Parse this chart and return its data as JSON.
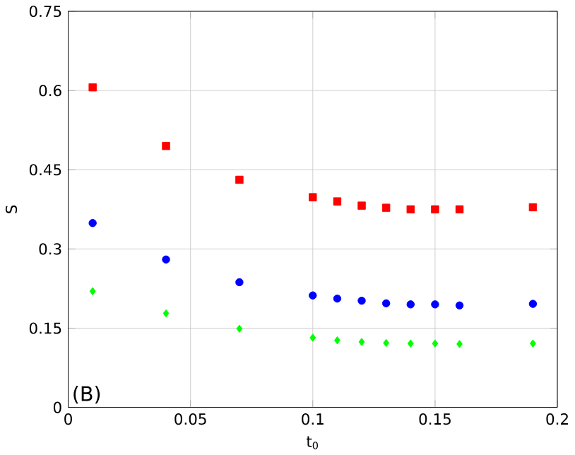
{
  "chart_data": {
    "type": "scatter",
    "xlabel": "t$_{0}$",
    "ylabel": "S",
    "x": [
      0.01,
      0.04,
      0.07,
      0.1,
      0.11,
      0.12,
      0.13,
      0.14,
      0.15,
      0.16,
      0.19
    ],
    "series": [
      {
        "color": "#ff0000",
        "marker": "square",
        "values": [
          0.606,
          0.495,
          0.431,
          0.398,
          0.39,
          0.382,
          0.378,
          0.375,
          0.375,
          0.375,
          0.379
        ]
      },
      {
        "color": "#0000ff",
        "marker": "circle",
        "values": [
          0.349,
          0.28,
          0.237,
          0.212,
          0.206,
          0.202,
          0.197,
          0.195,
          0.195,
          0.193,
          0.196
        ]
      },
      {
        "color": "#00ff00",
        "marker": "diamond",
        "values": [
          0.22,
          0.178,
          0.149,
          0.132,
          0.127,
          0.124,
          0.122,
          0.121,
          0.121,
          0.12,
          0.121
        ]
      }
    ],
    "xlim": [
      0,
      0.2
    ],
    "ylim": [
      0,
      0.75
    ],
    "xticks": [
      0,
      0.05,
      0.1,
      0.15,
      0.2
    ],
    "yticks": [
      0,
      0.15,
      0.3,
      0.45,
      0.6,
      0.75
    ],
    "grid": true,
    "annotations": [
      "(B)"
    ]
  }
}
